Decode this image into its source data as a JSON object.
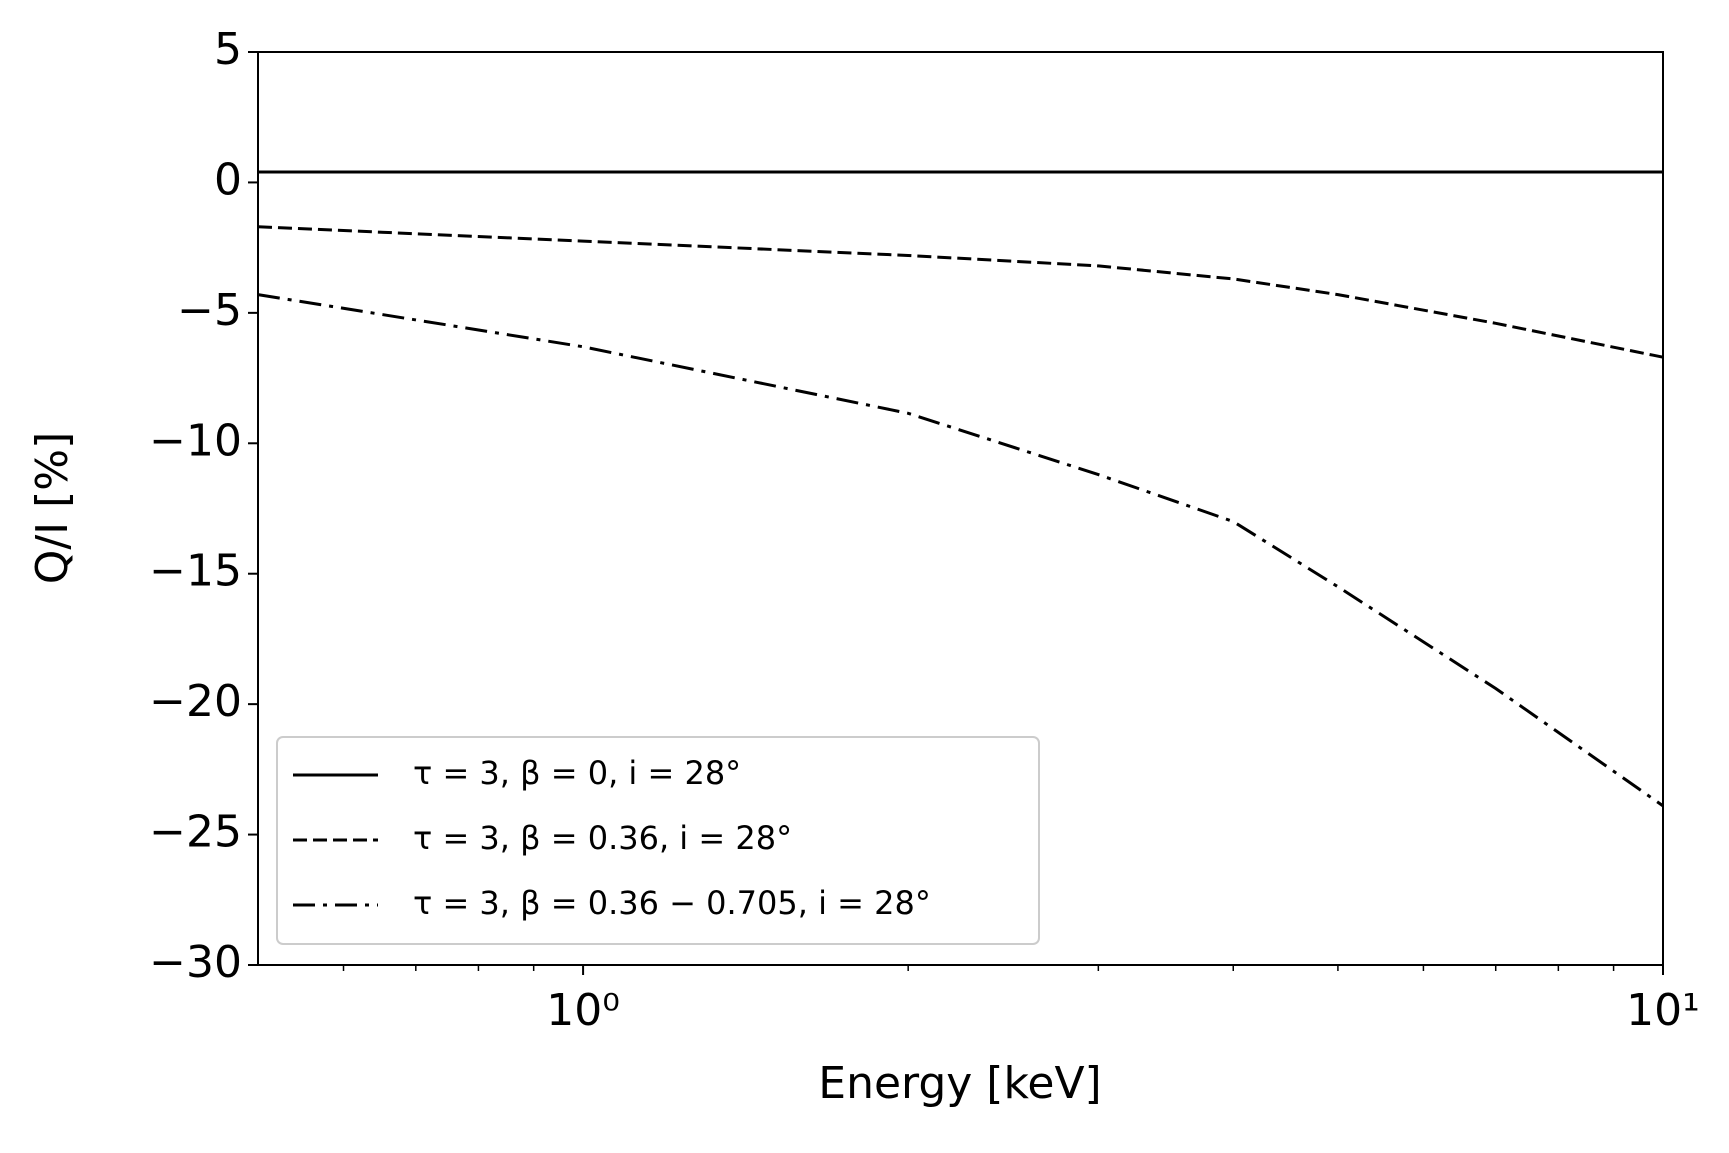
{
  "chart_data": {
    "type": "line",
    "x_label": "Energy [keV]",
    "y_label": "Q/I [%]",
    "xscale": "log",
    "xlim": [
      0.5,
      10
    ],
    "ylim": [
      -30,
      5
    ],
    "xticks": [
      {
        "value": 1,
        "label": "10⁰"
      },
      {
        "value": 10,
        "label": "10¹"
      }
    ],
    "yticks": [
      {
        "value": -30,
        "label": "−30"
      },
      {
        "value": -25,
        "label": "−25"
      },
      {
        "value": -20,
        "label": "−20"
      },
      {
        "value": -15,
        "label": "−15"
      },
      {
        "value": -10,
        "label": "−10"
      },
      {
        "value": -5,
        "label": "−5"
      },
      0,
      5
    ],
    "legend_loc": "lower left",
    "x": [
      0.5,
      1,
      2,
      3,
      4,
      5,
      7,
      10
    ],
    "series": [
      {
        "name": "τ = 3, β = 0, i = 28°",
        "color": "#000000",
        "style": "solid",
        "values": [
          0.4,
          0.4,
          0.4,
          0.4,
          0.4,
          0.4,
          0.4,
          0.4
        ]
      },
      {
        "name": "τ = 3, β = 0.36, i = 28°",
        "color": "#000000",
        "style": "dashed",
        "values": [
          -1.7,
          -2.25,
          -2.8,
          -3.2,
          -3.7,
          -4.3,
          -5.4,
          -6.7
        ]
      },
      {
        "name": "τ = 3, β = 0.36 − 0.705, i = 28°",
        "color": "#000000",
        "style": "dashdot",
        "values": [
          -4.3,
          -6.3,
          -8.85,
          -11.2,
          -13.0,
          -15.5,
          -19.4,
          -23.9
        ]
      }
    ]
  }
}
